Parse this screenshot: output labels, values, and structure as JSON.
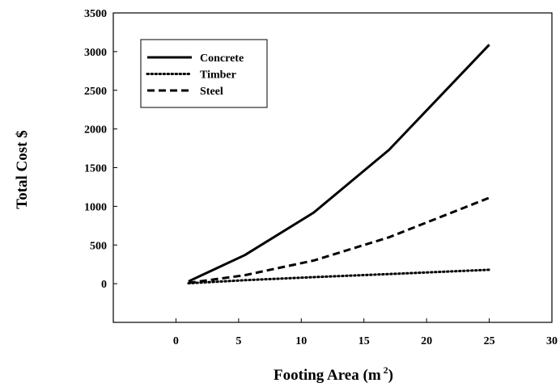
{
  "chart_data": {
    "type": "line",
    "xlabel": "Footing Area (m",
    "xlabel_superscript": "2",
    "xlabel_suffix": ")",
    "ylabel": "Total Cost $",
    "xlim": [
      -5,
      30
    ],
    "ylim": [
      -500,
      3500
    ],
    "xticks": [
      0,
      5,
      10,
      15,
      20,
      25,
      30
    ],
    "yticks": [
      0,
      500,
      1000,
      1500,
      2000,
      2500,
      3000,
      3500
    ],
    "grid": false,
    "legend_position": "top-left",
    "series": [
      {
        "name": "Concrete",
        "style": "solid",
        "x": [
          1,
          5.5,
          11,
          17,
          25
        ],
        "y": [
          30,
          370,
          920,
          1730,
          3090
        ]
      },
      {
        "name": "Timber",
        "style": "dotted",
        "x": [
          1,
          5.5,
          11,
          17,
          25
        ],
        "y": [
          5,
          45,
          85,
          125,
          180
        ]
      },
      {
        "name": "Steel",
        "style": "dashed",
        "x": [
          1,
          5.5,
          11,
          17,
          25
        ],
        "y": [
          10,
          110,
          300,
          600,
          1110
        ]
      }
    ]
  }
}
